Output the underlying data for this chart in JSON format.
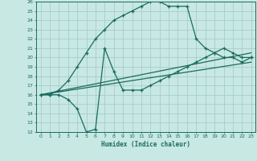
{
  "bg_color": "#c8e8e4",
  "line_color": "#1a6b5e",
  "grid_color": "#a8ccca",
  "xlabel": "Humidex (Indice chaleur)",
  "ylim": [
    12,
    26
  ],
  "xlim": [
    -0.5,
    23.5
  ],
  "yticks": [
    12,
    13,
    14,
    15,
    16,
    17,
    18,
    19,
    20,
    21,
    22,
    23,
    24,
    25,
    26
  ],
  "xticks": [
    0,
    1,
    2,
    3,
    4,
    5,
    6,
    7,
    8,
    9,
    10,
    11,
    12,
    13,
    14,
    15,
    16,
    17,
    18,
    19,
    20,
    21,
    22,
    23
  ],
  "line1_x": [
    0,
    1,
    2,
    3,
    4,
    5,
    6,
    7,
    8,
    9,
    10,
    11,
    12,
    13,
    14,
    15,
    16,
    17,
    18,
    19,
    20,
    21,
    22,
    23
  ],
  "line1_y": [
    16,
    16,
    16.5,
    17.5,
    19,
    20.5,
    22,
    23,
    24,
    24.5,
    25,
    25.5,
    26,
    26,
    25.5,
    25.5,
    25.5,
    22,
    21,
    20.5,
    20,
    20,
    19.5,
    20
  ],
  "line2_x": [
    0,
    1,
    2,
    3,
    4,
    5,
    6,
    7,
    8,
    9,
    10,
    11,
    12,
    13,
    14,
    15,
    16,
    17,
    18,
    19,
    20,
    21,
    22,
    23
  ],
  "line2_y": [
    16,
    16,
    16,
    15.5,
    14.5,
    12,
    12.3,
    21,
    18.5,
    16.5,
    16.5,
    16.5,
    17,
    17.5,
    18,
    18.5,
    19,
    19.5,
    20,
    20.5,
    21,
    20.5,
    20,
    20
  ],
  "line3_x": [
    0,
    23
  ],
  "line3_y": [
    16,
    19.5
  ],
  "line4_x": [
    0,
    23
  ],
  "line4_y": [
    16,
    20.5
  ]
}
